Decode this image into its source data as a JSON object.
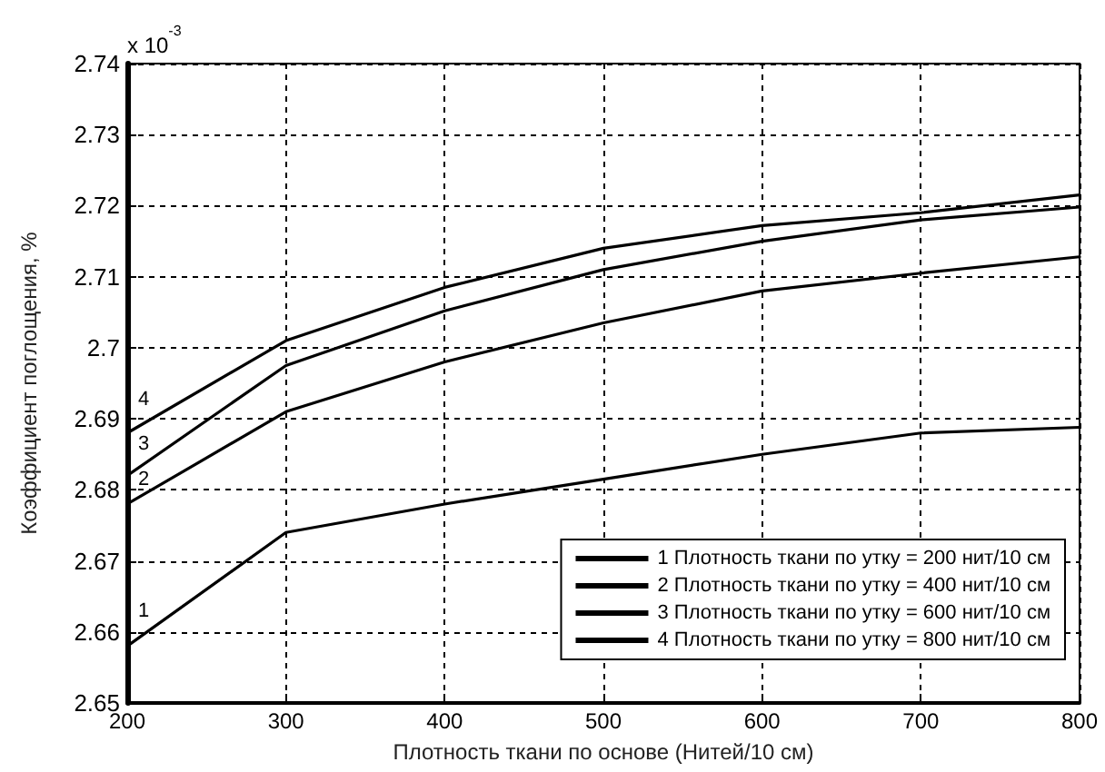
{
  "chart_data": {
    "type": "line",
    "xlabel": "Плотность ткани по основе (Нитей/10 см)",
    "ylabel": "Коэффициент поглощения, %",
    "x": [
      200,
      300,
      400,
      500,
      600,
      700,
      800
    ],
    "series": [
      {
        "name": "1 Плотность ткани по утку = 200 нит/10 см",
        "color": "#000000",
        "values": [
          2.658,
          2.674,
          2.678,
          2.6815,
          2.685,
          2.688,
          2.6888
        ]
      },
      {
        "name": "2 Плотность ткани по утку = 400 нит/10 см",
        "color": "#000000",
        "values": [
          2.678,
          2.691,
          2.698,
          2.7035,
          2.708,
          2.7105,
          2.7128
        ]
      },
      {
        "name": "3 Плотность ткани по утку = 600 нит/10 см",
        "color": "#000000",
        "values": [
          2.682,
          2.6975,
          2.7052,
          2.711,
          2.715,
          2.718,
          2.7198
        ]
      },
      {
        "name": "4 Плотность ткани по утку = 800 нит/10 см",
        "color": "#000000",
        "values": [
          2.688,
          2.701,
          2.7085,
          2.714,
          2.7172,
          2.719,
          2.7215
        ]
      }
    ],
    "annotations": [
      "x 10$^{-3}$",
      "1",
      "2",
      "3",
      "4"
    ],
    "xlim": [
      200,
      800
    ],
    "xticks": [
      200,
      300,
      400,
      500,
      600,
      700,
      800
    ],
    "ylim": [
      2.65,
      2.74
    ],
    "yticks": [
      2.65,
      2.66,
      2.67,
      2.68,
      2.69,
      2.7,
      2.71,
      2.72,
      2.73,
      2.74
    ],
    "grid": true,
    "legend": "bottom right",
    "marker": "none",
    "line_style": "solid"
  }
}
